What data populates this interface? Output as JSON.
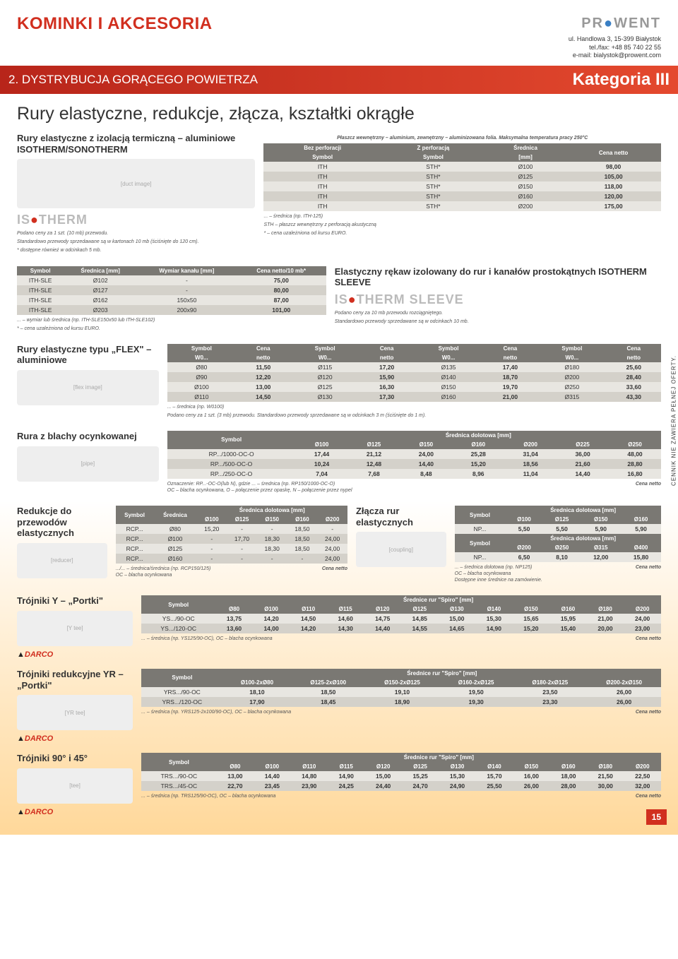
{
  "header": {
    "title": "KOMINKI I AKCESORIA",
    "subtitle": "2. DYSTRYBUCJA GORĄCEGO POWIETRZA",
    "category": "Kategoria III",
    "logo_plain": "PR",
    "logo_accent": "●",
    "logo_rest": "WENT",
    "addr1": "ul. Handlowa 3, 15-399 Białystok",
    "addr2": "tel./fax: +48 85 740 22 55",
    "addr3": "e-mail: bialystok@prowent.com"
  },
  "section": "Rury elastyczne, redukcje, złącza, kształtki okrągłe",
  "isotherm": {
    "title": "Rury elastyczne z izolacją termiczną – aluminiowe ISOTHERM/SONOTHERM",
    "logo": "IS●THERM",
    "caption": "Płaszcz wewnętrzny – aluminium, zewnętrzny – aluminizowana folia. Maksymalna temperatura pracy 250°C",
    "h": {
      "a": "Bez perforacji",
      "b": "Z perforacją",
      "c": "Średnica",
      "d": "Cena netto",
      "sa": "Symbol",
      "sb": "Symbol",
      "sc": "[mm]"
    },
    "rows": [
      {
        "a": "ITH",
        "b": "STH*",
        "c": "Ø100",
        "d": "98,00"
      },
      {
        "a": "ITH",
        "b": "STH*",
        "c": "Ø125",
        "d": "105,00"
      },
      {
        "a": "ITH",
        "b": "STH*",
        "c": "Ø150",
        "d": "118,00"
      },
      {
        "a": "ITH",
        "b": "STH*",
        "c": "Ø160",
        "d": "120,00"
      },
      {
        "a": "ITH",
        "b": "STH*",
        "c": "Ø200",
        "d": "175,00"
      }
    ],
    "note1": "Podano ceny za 1 szt. (10 mb) przewodu.",
    "note2": "Standardowo przewody sprzedawane są w kartonach 10 mb (ściśnięte do 120 cm).",
    "note3": "* dostępne również w odcinkach 5 mb.",
    "note4": "... – średnica (np. ITH-125)",
    "note5": "STH – płaszcz wewnętrzny z perforacją akustyczną",
    "note6": "* – cena uzależniona od kursu EURO."
  },
  "ithsle": {
    "h": {
      "a": "Symbol",
      "b": "Średnica [mm]",
      "c": "Wymiar kanału [mm]",
      "d": "Cena netto/10 mb*"
    },
    "rows": [
      {
        "a": "ITH-SLE",
        "b": "Ø102",
        "c": "-",
        "d": "75,00"
      },
      {
        "a": "ITH-SLE",
        "b": "Ø127",
        "c": "-",
        "d": "80,00"
      },
      {
        "a": "ITH-SLE",
        "b": "Ø162",
        "c": "150x50",
        "d": "87,00"
      },
      {
        "a": "ITH-SLE",
        "b": "Ø203",
        "c": "200x90",
        "d": "101,00"
      }
    ],
    "note1": "... – wymiar lub średnica (np. ITH-SLE150x50 lub ITH-SLE102)",
    "note2": "* – cena uzależniona od kursu EURO."
  },
  "sleeve": {
    "title": "Elastyczny rękaw izolowany do rur i kanałów prostokątnych ISOTHERM SLEEVE",
    "logo": "IS●THERM SLEEVE",
    "note1": "Podano ceny za 10 mb przewodu rozciągniętego.",
    "note2": "Standardowo przewody sprzedawane są w odcinkach 10 mb."
  },
  "flex": {
    "title": "Rury elastyczne typu „FLEX\" – aluminiowe",
    "hsym": "Symbol",
    "hcena": "Cena",
    "hw": "W0...",
    "hnetto": "netto",
    "rows": [
      {
        "s1": "Ø80",
        "c1": "11,50",
        "s2": "Ø115",
        "c2": "17,20",
        "s3": "Ø135",
        "c3": "17,40",
        "s4": "Ø180",
        "c4": "25,60"
      },
      {
        "s1": "Ø90",
        "c1": "12,20",
        "s2": "Ø120",
        "c2": "15,90",
        "s3": "Ø140",
        "c3": "18,70",
        "s4": "Ø200",
        "c4": "28,40"
      },
      {
        "s1": "Ø100",
        "c1": "13,00",
        "s2": "Ø125",
        "c2": "16,30",
        "s3": "Ø150",
        "c3": "19,70",
        "s4": "Ø250",
        "c4": "33,60"
      },
      {
        "s1": "Ø110",
        "c1": "14,50",
        "s2": "Ø130",
        "c2": "17,30",
        "s3": "Ø160",
        "c3": "21,00",
        "s4": "Ø315",
        "c4": "43,30"
      }
    ],
    "note1": "... – średnica (np. W0100)",
    "note2": "Podano ceny za 1 szt. (3 mb) przewodu. Standardowo przewody sprzedawane są w odcinkach 3 m (ściśnięte do 1 m)."
  },
  "rp": {
    "title": "Rura z blachy ocynkowanej",
    "hsym": "Symbol",
    "hspan": "Średnica dolotowa [mm]",
    "cols": [
      "Ø100",
      "Ø125",
      "Ø150",
      "Ø160",
      "Ø200",
      "Ø225",
      "Ø250"
    ],
    "rows": [
      {
        "s": "RP.../1000-OC-O",
        "v": [
          "17,44",
          "21,12",
          "24,00",
          "25,28",
          "31,04",
          "36,00",
          "48,00"
        ]
      },
      {
        "s": "RP.../500-OC-O",
        "v": [
          "10,24",
          "12,48",
          "14,40",
          "15,20",
          "18,56",
          "21,60",
          "28,80"
        ]
      },
      {
        "s": "RP.../250-OC-O",
        "v": [
          "7,04",
          "7,68",
          "8,48",
          "8,96",
          "11,04",
          "14,40",
          "16,80"
        ]
      }
    ],
    "note1": "Oznaczenie: RP...-OC-O(lub N), gdzie ... – średnica (np. RP150/1000-OC-O)",
    "note2": "OC – blacha ocynkowana, O – połączenie przez opaskę, N – połączenie przez nypel",
    "cena": "Cena netto"
  },
  "rcp": {
    "title": "Redukcje do przewodów elastycznych",
    "hsym": "Symbol",
    "hsred": "Średnica",
    "hspan": "Średnica dolotowa [mm]",
    "cols": [
      "Ø100",
      "Ø125",
      "Ø150",
      "Ø160",
      "Ø200"
    ],
    "rows": [
      {
        "s": "RCP...",
        "d": "Ø80",
        "v": [
          "15,20",
          "-",
          "-",
          "18,50",
          "-"
        ]
      },
      {
        "s": "RCP...",
        "d": "Ø100",
        "v": [
          "-",
          "17,70",
          "18,30",
          "18,50",
          "24,00"
        ]
      },
      {
        "s": "RCP...",
        "d": "Ø125",
        "v": [
          "-",
          "-",
          "18,30",
          "18,50",
          "24,00"
        ]
      },
      {
        "s": "RCP...",
        "d": "Ø160",
        "v": [
          "-",
          "-",
          "-",
          "-",
          "24,00"
        ]
      }
    ],
    "note1": ".../... – średnica/średnica (np. RCP150/125)",
    "note2": "OC – blacha ocynkowana",
    "cena": "Cena netto"
  },
  "np": {
    "title": "Złącza rur elastycznych",
    "hsym": "Symbol",
    "hspan": "Średnica dolotowa [mm]",
    "cols1": [
      "Ø100",
      "Ø125",
      "Ø150",
      "Ø160"
    ],
    "r1": {
      "s": "NP...",
      "v": [
        "5,50",
        "5,50",
        "5,90",
        "5,90"
      ]
    },
    "cols2": [
      "Ø200",
      "Ø250",
      "Ø315",
      "Ø400"
    ],
    "r2": {
      "s": "NP...",
      "v": [
        "6,50",
        "8,10",
        "12,00",
        "15,80"
      ]
    },
    "note1": "... – średnica dolotowa (np. NP125)",
    "note2": "OC – blacha ocynkowana",
    "note3": "Dostępne inne średnice na zamówienie.",
    "cena": "Cena netto"
  },
  "ys": {
    "title": "Trójniki Y – „Portki\"",
    "hsym": "Symbol",
    "hspan": "Średnice rur \"Spiro\" [mm]",
    "cols": [
      "Ø80",
      "Ø100",
      "Ø110",
      "Ø115",
      "Ø120",
      "Ø125",
      "Ø130",
      "Ø140",
      "Ø150",
      "Ø160",
      "Ø180",
      "Ø200"
    ],
    "rows": [
      {
        "s": "YS.../90-OC",
        "v": [
          "13,75",
          "14,20",
          "14,50",
          "14,60",
          "14,75",
          "14,85",
          "15,00",
          "15,30",
          "15,65",
          "15,95",
          "21,00",
          "24,00"
        ]
      },
      {
        "s": "YS.../120-OC",
        "v": [
          "13,60",
          "14,00",
          "14,20",
          "14,30",
          "14,40",
          "14,55",
          "14,65",
          "14,90",
          "15,20",
          "15,40",
          "20,00",
          "23,00"
        ]
      }
    ],
    "note": "... – średnica (np. YS125/90-OC), OC – blacha ocynkowana",
    "cena": "Cena netto"
  },
  "yrs": {
    "title": "Trójniki redukcyjne YR – „Portki\"",
    "hsym": "Symbol",
    "hspan": "Średnice rur \"Spiro\" [mm]",
    "cols": [
      "Ø100-2xØ80",
      "Ø125-2xØ100",
      "Ø150-2xØ125",
      "Ø160-2xØ125",
      "Ø180-2xØ125",
      "Ø200-2xØ150"
    ],
    "rows": [
      {
        "s": "YRS.../90-OC",
        "v": [
          "18,10",
          "18,50",
          "19,10",
          "19,50",
          "23,50",
          "26,00"
        ]
      },
      {
        "s": "YRS.../120-OC",
        "v": [
          "17,90",
          "18,45",
          "18,90",
          "19,30",
          "23,30",
          "26,00"
        ]
      }
    ],
    "note": "... – średnica (np. YRS125-2x100/90-OC), OC – blacha ocynkowana",
    "cena": "Cena netto"
  },
  "trs": {
    "title": "Trójniki 90° i 45°",
    "hsym": "Symbol",
    "hspan": "Średnice rur \"Spiro\" [mm]",
    "cols": [
      "Ø80",
      "Ø100",
      "Ø110",
      "Ø115",
      "Ø120",
      "Ø125",
      "Ø130",
      "Ø140",
      "Ø150",
      "Ø160",
      "Ø180",
      "Ø200"
    ],
    "rows": [
      {
        "s": "TRS.../90-OC",
        "v": [
          "13,00",
          "14,40",
          "14,80",
          "14,90",
          "15,00",
          "15,25",
          "15,30",
          "15,70",
          "16,00",
          "18,00",
          "21,50",
          "22,50"
        ]
      },
      {
        "s": "TRS.../45-OC",
        "v": [
          "22,70",
          "23,45",
          "23,90",
          "24,25",
          "24,40",
          "24,70",
          "24,90",
          "25,50",
          "26,00",
          "28,00",
          "30,00",
          "32,00"
        ]
      }
    ],
    "note": "... – średnica (np. TRS125/90-OC), OC – blacha ocynkowana",
    "cena": "Cena netto"
  },
  "sidenote": "CENNIK NIE ZAWIERA PEŁNEJ OFERTY.",
  "page": "15",
  "darco": "DARCO"
}
